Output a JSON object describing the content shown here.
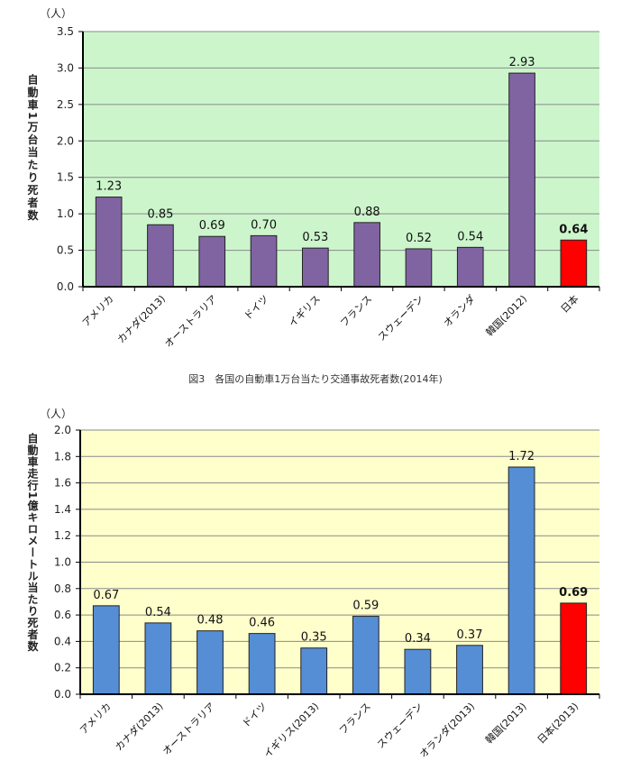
{
  "chart_data": [
    {
      "type": "bar",
      "unit": "（人）",
      "ylabel": "自動車1万台当たり死者数",
      "ylim": [
        0,
        3.5
      ],
      "yticks": [
        "0.0",
        "0.5",
        "1.0",
        "1.5",
        "2.0",
        "2.5",
        "3.0",
        "3.5"
      ],
      "grid": true,
      "background": "#ccf5cc",
      "bar_color": "#8064a2",
      "highlight_color": "#ff0000",
      "categories": [
        "アメリカ",
        "カナダ(2013)",
        "オーストラリア",
        "ドイツ",
        "イギリス",
        "フランス",
        "スウェーデン",
        "オランダ",
        "韓国(2012)",
        "日本"
      ],
      "values": [
        1.23,
        0.85,
        0.69,
        0.7,
        0.53,
        0.88,
        0.52,
        0.54,
        2.93,
        0.64
      ],
      "value_labels": [
        "1.23",
        "0.85",
        "0.69",
        "0.70",
        "0.53",
        "0.88",
        "0.52",
        "0.54",
        "2.93",
        "0.64"
      ],
      "highlight_index": 9
    },
    {
      "type": "bar",
      "unit": "（人）",
      "ylabel": "自動車走行1億キロメートル当たり死者数",
      "ylim": [
        0,
        2.0
      ],
      "yticks": [
        "0.0",
        "0.2",
        "0.4",
        "0.6",
        "0.8",
        "1.0",
        "1.2",
        "1.4",
        "1.6",
        "1.8",
        "2.0"
      ],
      "grid": true,
      "background": "#ffffcc",
      "bar_color": "#558ed5",
      "highlight_color": "#ff0000",
      "categories": [
        "アメリカ",
        "カナダ(2013)",
        "オーストラリア",
        "ドイツ",
        "イギリス(2013)",
        "フランス",
        "スウェーデン",
        "オランダ(2013)",
        "韓国(2013)",
        "日本(2013)"
      ],
      "values": [
        0.67,
        0.54,
        0.48,
        0.46,
        0.35,
        0.59,
        0.34,
        0.37,
        1.72,
        0.69
      ],
      "value_labels": [
        "0.67",
        "0.54",
        "0.48",
        "0.46",
        "0.35",
        "0.59",
        "0.34",
        "0.37",
        "1.72",
        "0.69"
      ],
      "highlight_index": 9
    }
  ],
  "caption": "図3　各国の自動車1万台当たり交通事故死者数(2014年)"
}
